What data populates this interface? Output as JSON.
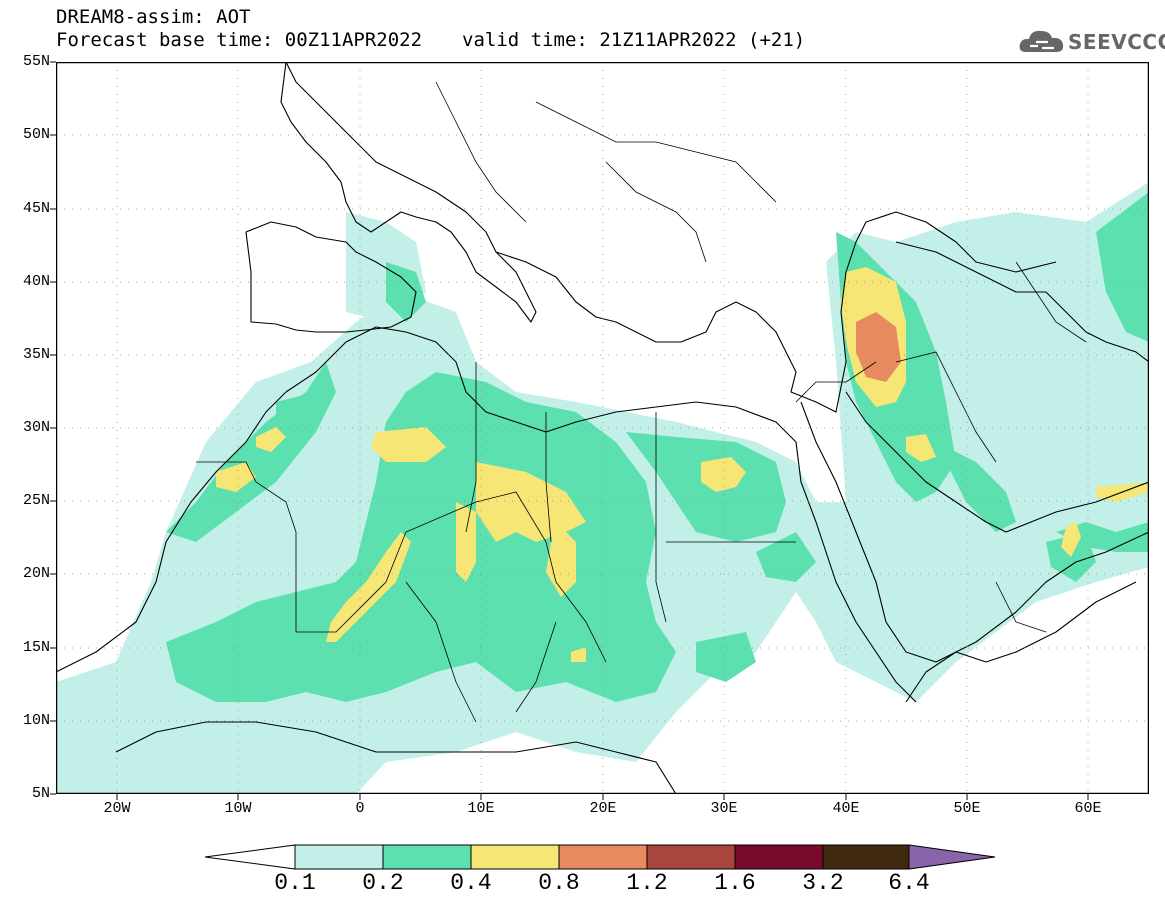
{
  "header": {
    "title": "DREAM8-assim: AOT",
    "base_time": "Forecast base time: 00Z11APR2022",
    "valid_time": "valid time: 21Z11APR2022 (+21)"
  },
  "logo": {
    "text": "SEEVCCC",
    "icon": "cloud-icon"
  },
  "map": {
    "variable": "AOT",
    "lon_range": [
      -25,
      65
    ],
    "lat_range": [
      5,
      55
    ],
    "grid": "dotted",
    "lat_labels": [
      "55N",
      "50N",
      "45N",
      "40N",
      "35N",
      "30N",
      "25N",
      "20N",
      "15N",
      "10N",
      "5N"
    ],
    "lon_labels": [
      "20W",
      "10W",
      "0",
      "10E",
      "20E",
      "30E",
      "40E",
      "50E",
      "60E"
    ]
  },
  "colorbar": {
    "levels": [
      "0.1",
      "0.2",
      "0.4",
      "0.8",
      "1.2",
      "1.6",
      "3.2",
      "6.4"
    ],
    "colors": [
      "#ffffff",
      "#c2f0e8",
      "#5ce0b0",
      "#f5e676",
      "#e88a60",
      "#a8453c",
      "#7a0a2a",
      "#40280f",
      "#8a64a8"
    ]
  }
}
